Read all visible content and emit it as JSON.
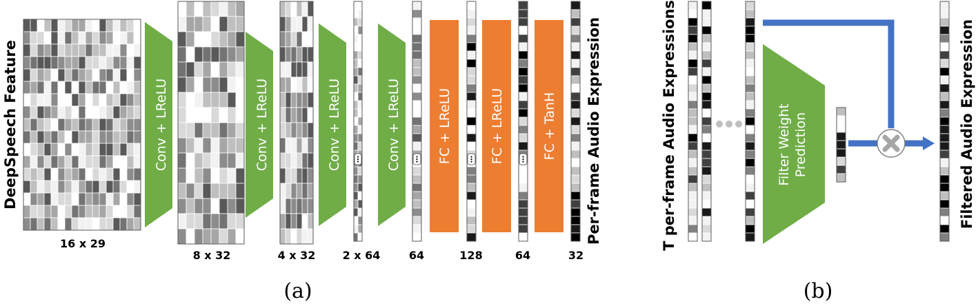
{
  "panel_a": {
    "input_label": "DeepSpeech Feature",
    "output_label": "Per-frame Audio Expression",
    "layers": [
      "Conv + LReLU",
      "Conv + LReLU",
      "Conv + LReLU",
      "Conv + LReLU",
      "FC + LReLU",
      "FC + LReLU",
      "FC + TanH"
    ],
    "dims": [
      "16 x 29",
      "8 x 32",
      "4 x 32",
      "2 x 64",
      "64",
      "128",
      "64",
      "32"
    ],
    "caption": "(a)"
  },
  "panel_b": {
    "input_label": "T per-frame Audio Expressions",
    "network_label_line1": "Filter Weight",
    "network_label_line2": "Prediction",
    "output_label": "Filtered Audio Expression",
    "caption": "(b)"
  },
  "colors": {
    "conv_green": "#70ad47",
    "fc_orange": "#ed7d31",
    "arrow_blue": "#4472c4",
    "multiply_gray": "#a6a6a6"
  }
}
